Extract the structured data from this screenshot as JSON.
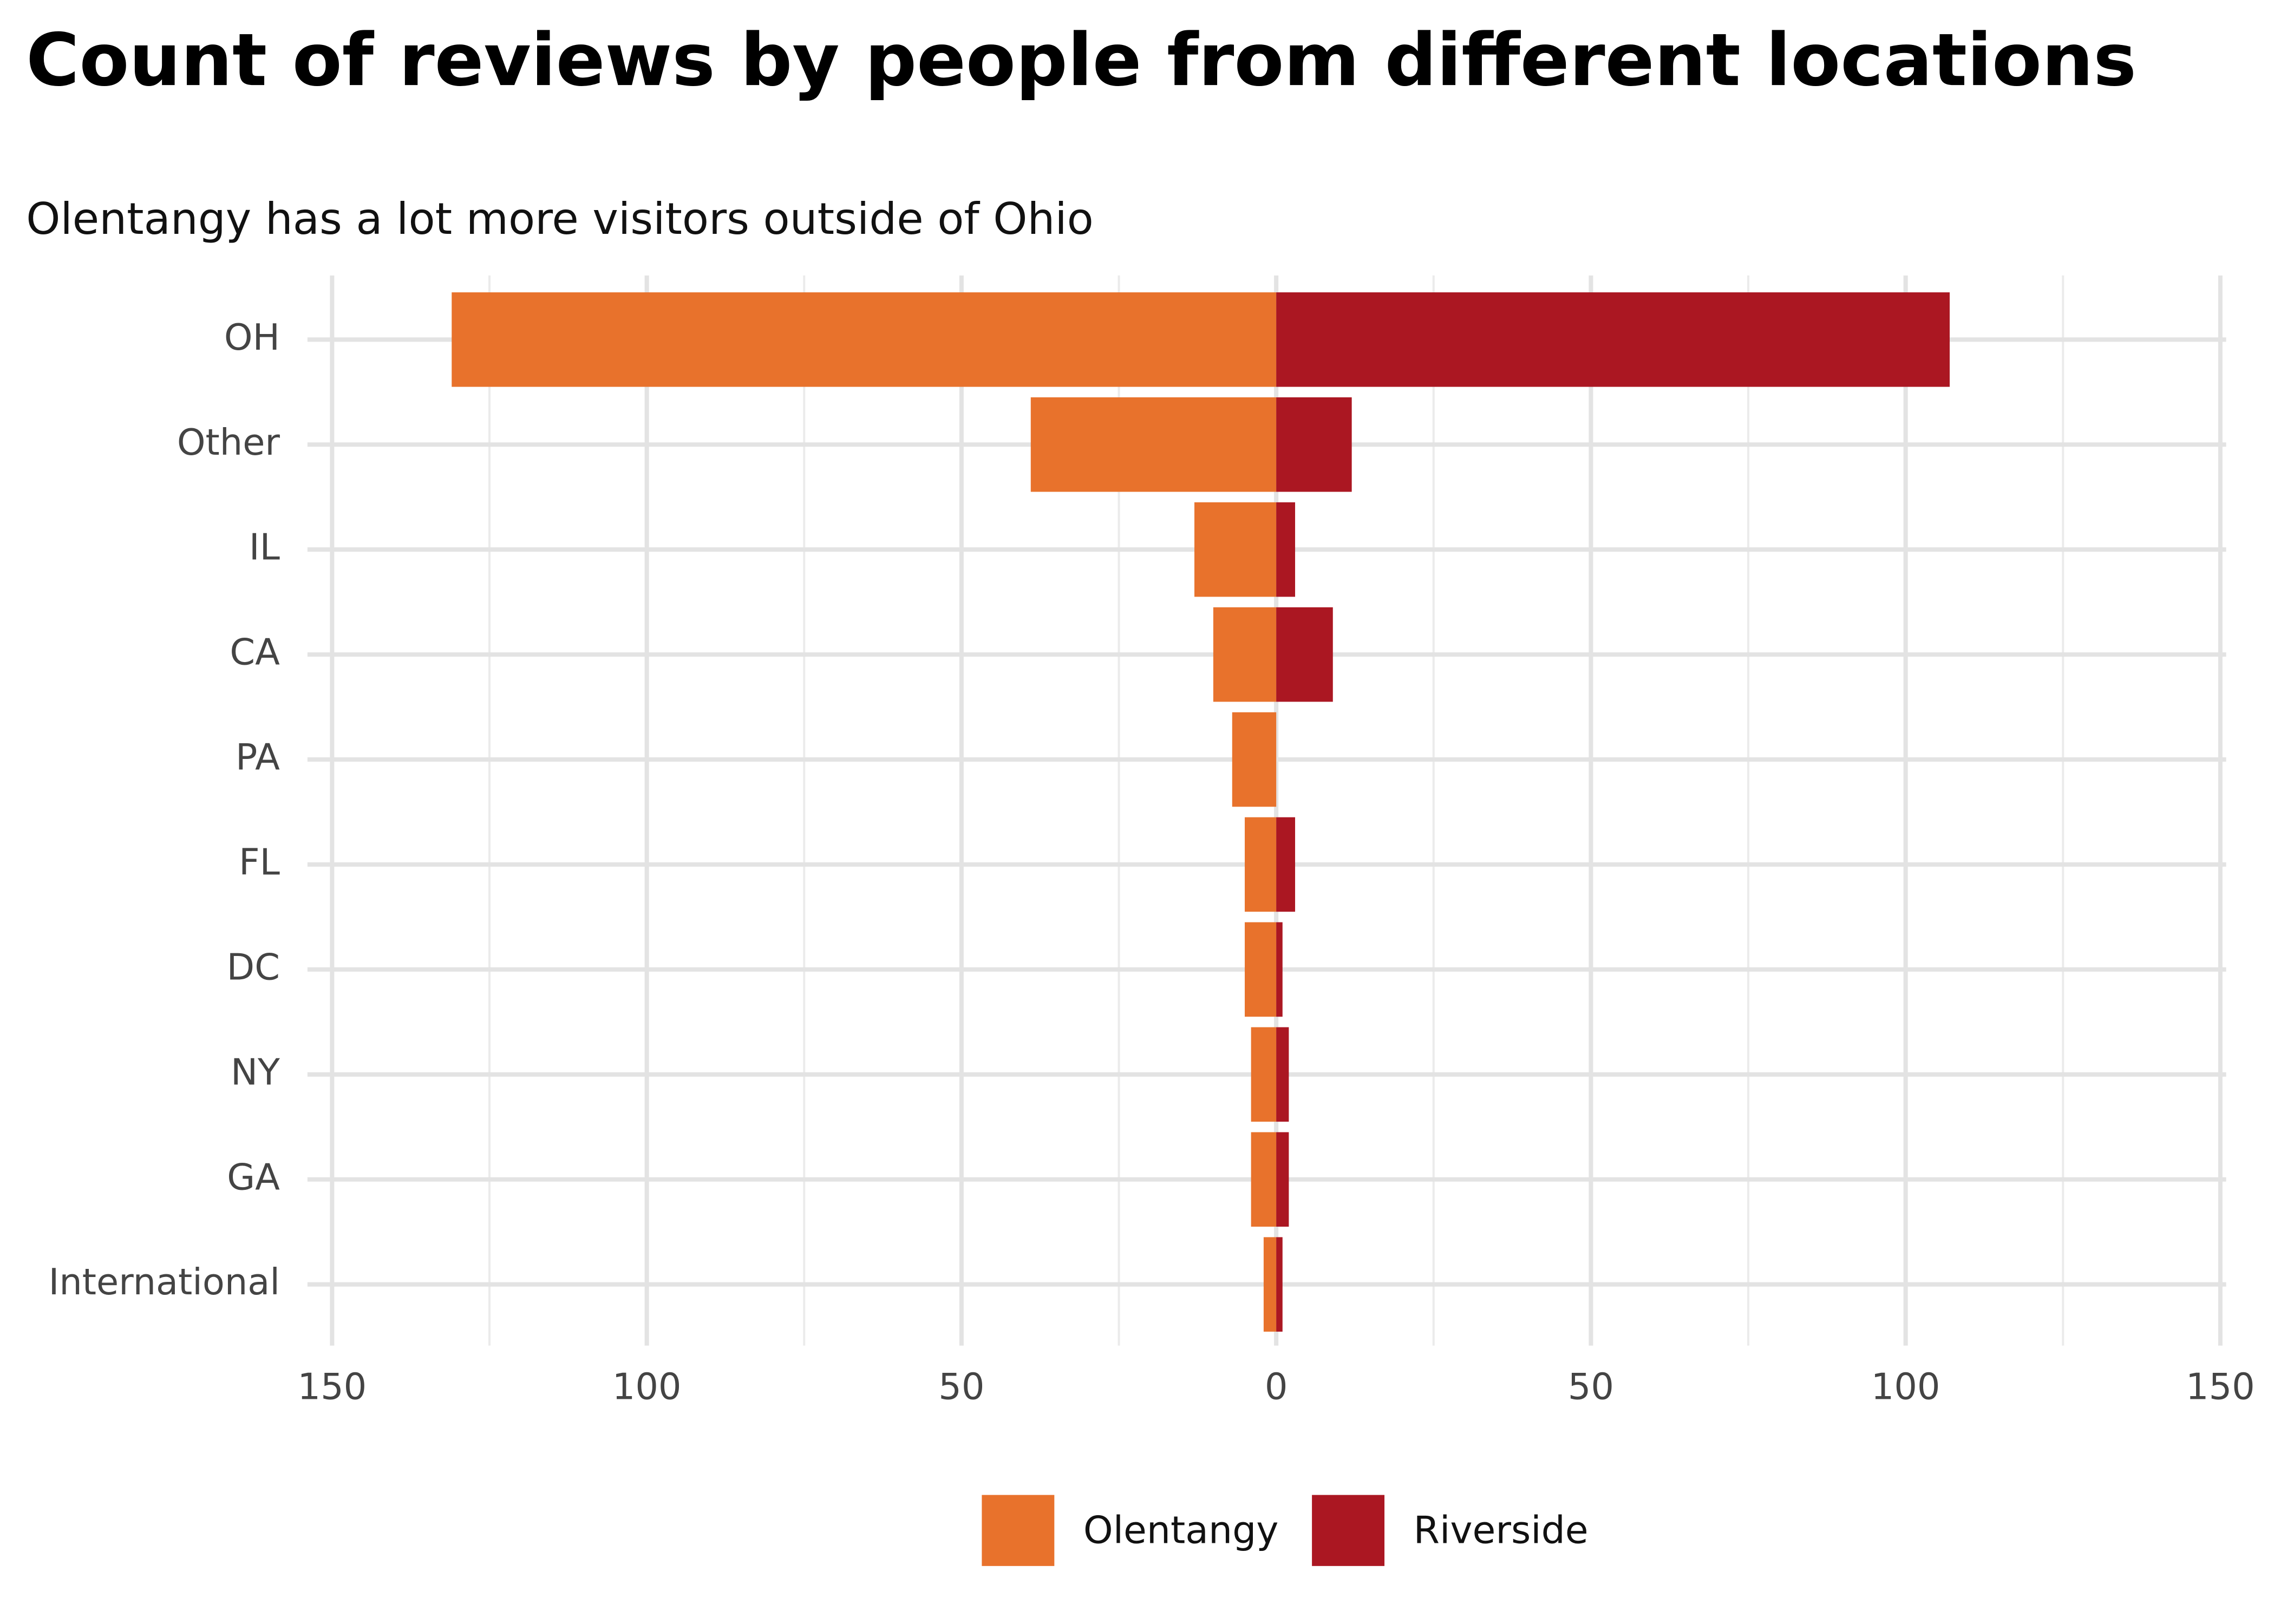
{
  "chart_data": {
    "type": "diverging_bar",
    "title": "Count of reviews by people from different locations",
    "subtitle": "Olentangy has a lot more visitors outside of Ohio",
    "categories": [
      "OH",
      "Other",
      "IL",
      "CA",
      "PA",
      "FL",
      "DC",
      "NY",
      "GA",
      "International"
    ],
    "series": [
      {
        "name": "Olentangy",
        "color": "#e8722c",
        "values": [
          -131,
          -39,
          -13,
          -10,
          -7,
          -5,
          -5,
          -4,
          -4,
          -2
        ]
      },
      {
        "name": "Riverside",
        "color": "#ab1722",
        "values": [
          107,
          12,
          3,
          9,
          0,
          3,
          1,
          2,
          2,
          1
        ]
      }
    ],
    "xlim": [
      -150,
      150
    ],
    "xticks": [
      {
        "value": -150,
        "label": "150"
      },
      {
        "value": -100,
        "label": "100"
      },
      {
        "value": -50,
        "label": "50"
      },
      0,
      50,
      100,
      150
    ],
    "x_minor_grid": [
      -125,
      -75,
      -25,
      25,
      75,
      125
    ],
    "grid": true,
    "legend": "bottom"
  }
}
